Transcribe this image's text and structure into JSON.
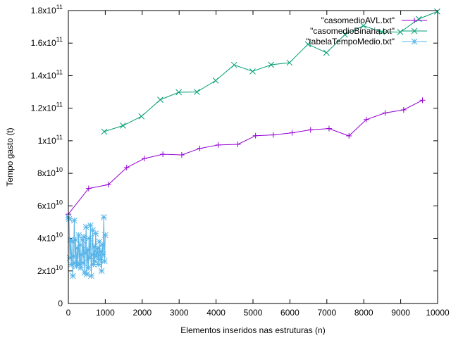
{
  "chart_data": {
    "type": "line",
    "xlabel": "Elementos inseridos nas estruturas (n)",
    "ylabel": "Tempo gasto (t)",
    "xlim": [
      0,
      10000
    ],
    "ylim": [
      0,
      180000000000
    ],
    "grid": false,
    "legend_position": "top-right",
    "x_ticks": [
      {
        "value": 0,
        "label": "0"
      },
      {
        "value": 1000,
        "label": "1000"
      },
      {
        "value": 2000,
        "label": "2000"
      },
      {
        "value": 3000,
        "label": "3000"
      },
      {
        "value": 4000,
        "label": "4000"
      },
      {
        "value": 5000,
        "label": "5000"
      },
      {
        "value": 6000,
        "label": "6000"
      },
      {
        "value": 7000,
        "label": "7000"
      },
      {
        "value": 8000,
        "label": "8000"
      },
      {
        "value": 9000,
        "label": "9000"
      },
      {
        "value": 10000,
        "label": "10000"
      }
    ],
    "y_ticks": [
      {
        "value": 0,
        "mantissa": "0",
        "exponent": ""
      },
      {
        "value": 20000000000,
        "mantissa": "2x10",
        "exponent": "10"
      },
      {
        "value": 40000000000,
        "mantissa": "4x10",
        "exponent": "10"
      },
      {
        "value": 60000000000,
        "mantissa": "6x10",
        "exponent": "10"
      },
      {
        "value": 80000000000,
        "mantissa": "8x10",
        "exponent": "10"
      },
      {
        "value": 100000000000,
        "mantissa": "1x10",
        "exponent": "11"
      },
      {
        "value": 120000000000,
        "mantissa": "1.2x10",
        "exponent": "11"
      },
      {
        "value": 140000000000,
        "mantissa": "1.4x10",
        "exponent": "11"
      },
      {
        "value": 160000000000,
        "mantissa": "1.6x10",
        "exponent": "11"
      },
      {
        "value": 180000000000,
        "mantissa": "1.8x10",
        "exponent": "11"
      }
    ],
    "series": [
      {
        "name": "\"casomedioAVL.txt\"",
        "color": "#9400d3",
        "marker": "plus",
        "x": [
          0,
          550,
          1080,
          1580,
          2060,
          2560,
          3070,
          3560,
          4060,
          4590,
          5070,
          5550,
          6060,
          6560,
          7060,
          7600,
          8070,
          8580,
          9080,
          9590
        ],
        "y": [
          54900000000,
          70700000000,
          73000000000,
          83500000000,
          89100000000,
          91700000000,
          91300000000,
          95300000000,
          97400000000,
          97800000000,
          103100000000,
          103600000000,
          104900000000,
          106700000000,
          107500000000,
          103000000000,
          113000000000,
          117100000000,
          119000000000,
          124900000000
        ]
      },
      {
        "name": "\"casomedioBinaria.txt\"",
        "color": "#009e73",
        "marker": "cross",
        "x": [
          970,
          1480,
          1980,
          2490,
          2990,
          3480,
          3990,
          4490,
          4990,
          5490,
          5990,
          6490,
          6990,
          7490,
          7990,
          8490,
          8990,
          9490,
          9990
        ],
        "y": [
          105600000000,
          109300000000,
          115000000000,
          125200000000,
          129800000000,
          130000000000,
          137000000000,
          146600000000,
          142600000000,
          146700000000,
          148000000000,
          159300000000,
          154100000000,
          165200000000,
          170700000000,
          166900000000,
          166800000000,
          174800000000,
          179400000000
        ]
      },
      {
        "name": "\"tabelaTempoMedio.txt\"",
        "color": "#56b4e9",
        "marker": "star",
        "x": [
          0,
          20,
          40,
          60,
          80,
          100,
          120,
          140,
          160,
          180,
          200,
          220,
          240,
          260,
          280,
          300,
          320,
          340,
          360,
          380,
          400,
          420,
          440,
          460,
          480,
          500,
          520,
          540,
          560,
          580,
          600,
          620,
          640,
          660,
          680,
          700,
          720,
          740,
          760,
          780,
          800,
          820,
          840,
          860,
          880,
          900,
          920,
          940,
          960,
          980,
          1000
        ],
        "y": [
          53000000000,
          52000000000,
          28000000000,
          39000000000,
          24000000000,
          38000000000,
          17000000000,
          29000000000,
          51000000000,
          25000000000,
          39000000000,
          23000000000,
          34000000000,
          25000000000,
          42000000000,
          24000000000,
          36000000000,
          22000000000,
          30000000000,
          39000000000,
          25000000000,
          41000000000,
          19000000000,
          31000000000,
          47000000000,
          18000000000,
          33000000000,
          22000000000,
          40000000000,
          28000000000,
          48000000000,
          17000000000,
          30000000000,
          45000000000,
          24000000000,
          35000000000,
          26000000000,
          43000000000,
          29000000000,
          31000000000,
          34000000000,
          24000000000,
          38000000000,
          27000000000,
          32000000000,
          20000000000,
          36000000000,
          30000000000,
          53000000000,
          26000000000,
          42000000000
        ]
      }
    ]
  }
}
